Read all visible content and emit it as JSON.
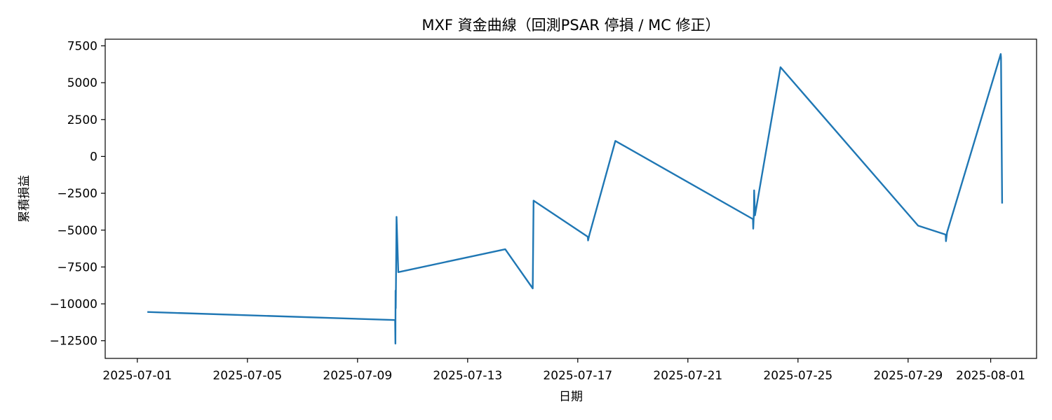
{
  "chart_data": {
    "type": "line",
    "title": "MXF 資金曲線（回測PSAR 停損 / MC 修正）",
    "xlabel": "日期",
    "ylabel": "累積損益",
    "x_ticks": [
      "2025-07-01",
      "2025-07-05",
      "2025-07-09",
      "2025-07-13",
      "2025-07-17",
      "2025-07-21",
      "2025-07-25",
      "2025-07-29",
      "2025-08-01"
    ],
    "y_ticks": [
      7500,
      5000,
      2500,
      0,
      -2500,
      -5000,
      -7500,
      -10000,
      -12500
    ],
    "y_tick_labels": [
      "7500",
      "5000",
      "2500",
      "0",
      "−2500",
      "−5000",
      "−7500",
      "−10000",
      "−12500"
    ],
    "xlim": [
      "2025-06-29T20:00",
      "2025-08-02T16:00"
    ],
    "ylim": [
      -13700,
      7950
    ],
    "grid": false,
    "series": [
      {
        "color": "#1f77b4",
        "points": [
          [
            "2025-07-01T08:45",
            -10550
          ],
          [
            "2025-07-10T08:45",
            -11100
          ],
          [
            "2025-07-10T09:00",
            -12700
          ],
          [
            "2025-07-10T09:10",
            -9100
          ],
          [
            "2025-07-10T09:20",
            -10300
          ],
          [
            "2025-07-10T10:00",
            -4100
          ],
          [
            "2025-07-10T10:20",
            -5000
          ],
          [
            "2025-07-10T11:30",
            -7850
          ],
          [
            "2025-07-14T08:45",
            -6300
          ],
          [
            "2025-07-15T08:45",
            -8950
          ],
          [
            "2025-07-15T09:30",
            -3000
          ],
          [
            "2025-07-17T08:45",
            -5450
          ],
          [
            "2025-07-17T09:00",
            -5700
          ],
          [
            "2025-07-17T10:00",
            -5350
          ],
          [
            "2025-07-18T08:45",
            1050
          ],
          [
            "2025-07-23T08:45",
            -4250
          ],
          [
            "2025-07-23T09:00",
            -4900
          ],
          [
            "2025-07-23T09:30",
            -3900
          ],
          [
            "2025-07-23T09:45",
            -2300
          ],
          [
            "2025-07-23T10:30",
            -4000
          ],
          [
            "2025-07-24T08:45",
            6050
          ],
          [
            "2025-07-29T08:45",
            -4700
          ],
          [
            "2025-07-30T08:45",
            -5300
          ],
          [
            "2025-07-30T09:00",
            -5750
          ],
          [
            "2025-07-30T10:00",
            -5150
          ],
          [
            "2025-08-01T08:45",
            6950
          ],
          [
            "2025-08-01T09:00",
            6700
          ],
          [
            "2025-08-01T10:00",
            -3200
          ]
        ]
      }
    ]
  }
}
